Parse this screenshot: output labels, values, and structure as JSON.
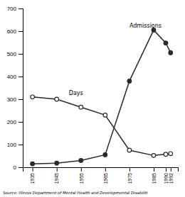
{
  "chart_data": {
    "type": "line",
    "x": [
      1935,
      1945,
      1955,
      1965,
      1975,
      1985,
      1990,
      1992
    ],
    "series": [
      {
        "color": "#2a2a2a",
        "marker": "circle",
        "values": [
          15,
          18,
          30,
          55,
          380,
          605,
          548,
          505
        ]
      },
      {
        "color": "#2a2a2a",
        "marker": "circle-open",
        "values": [
          310,
          300,
          265,
          230,
          75,
          52,
          57,
          60
        ]
      }
    ],
    "annotations": [
      {
        "text": "Admissions",
        "x": 1975,
        "y": 615
      },
      {
        "text": "Days",
        "x": 1950,
        "y": 318
      }
    ],
    "source": "Source: Illinois Department of Mental Health and Developmental Disabiliti",
    "xlim": [
      1931,
      1995
    ],
    "xticks": [
      1935,
      1945,
      1955,
      1965,
      1975,
      1985,
      1990,
      1992
    ],
    "ylim": [
      0,
      700
    ],
    "yticks": [
      0,
      100,
      200,
      300,
      400,
      500,
      600,
      700
    ],
    "grid": false
  }
}
